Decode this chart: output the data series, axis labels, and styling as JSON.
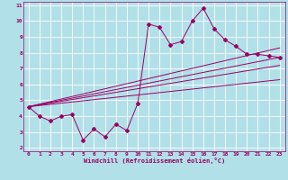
{
  "xlabel": "Windchill (Refroidissement éolien,°C)",
  "bg_color": "#b2e0e8",
  "grid_color": "#ffffff",
  "line_color": "#990066",
  "xlim": [
    -0.5,
    23.5
  ],
  "ylim": [
    1.8,
    11.2
  ],
  "xticks": [
    0,
    1,
    2,
    3,
    4,
    5,
    6,
    7,
    8,
    9,
    10,
    11,
    12,
    13,
    14,
    15,
    16,
    17,
    18,
    19,
    20,
    21,
    22,
    23
  ],
  "yticks": [
    2,
    3,
    4,
    5,
    6,
    7,
    8,
    9,
    10,
    11
  ],
  "data_x": [
    0,
    1,
    2,
    3,
    4,
    5,
    6,
    7,
    8,
    9,
    10,
    11,
    12,
    13,
    14,
    15,
    16,
    17,
    18,
    19,
    20,
    21,
    22,
    23
  ],
  "scatter_y": [
    4.6,
    4.0,
    3.7,
    4.0,
    4.1,
    2.5,
    3.2,
    2.7,
    3.5,
    3.1,
    4.8,
    9.8,
    9.6,
    8.5,
    8.7,
    10.0,
    10.8,
    9.5,
    8.8,
    8.4,
    7.9,
    7.9,
    7.8,
    7.7
  ],
  "line1_y_end": 7.7,
  "line2_y_end": 8.3,
  "line3_y_end": 7.2,
  "line4_y_end": 6.3,
  "line_y_start": 4.6,
  "line_x_start": 0,
  "line_x_end": 23
}
